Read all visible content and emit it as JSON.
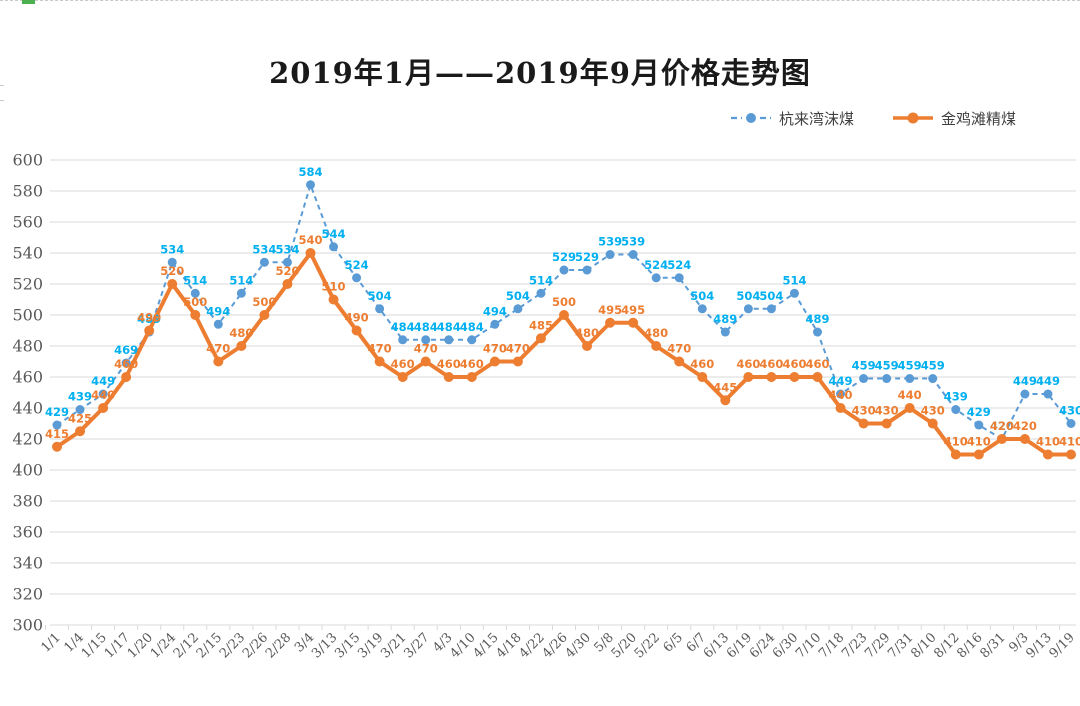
{
  "title": "2019年1月——2019年9月价格走势图",
  "legend": {
    "items": [
      {
        "label": "杭来湾沫煤",
        "marker": "dashed-line-dot-icon"
      },
      {
        "label": "金鸡滩精煤",
        "marker": "solid-line-dot-icon"
      }
    ]
  },
  "colors": {
    "series1_line": "#5B9BD5",
    "series1_label": "#00B0F0",
    "series2_line": "#ED7D31",
    "series2_label": "#ED7D31",
    "grid": "#D9D9D9",
    "axis_text": "#595959",
    "background": "#FFFFFF"
  },
  "chart_data": {
    "type": "line",
    "title": "2019年1月——2019年9月价格走势图",
    "xlabel": "",
    "ylabel": "",
    "ylim": [
      300,
      600
    ],
    "ytick_step": 20,
    "grid": true,
    "legend_position": "top-right",
    "categories": [
      "1/1",
      "1/4",
      "1/15",
      "1/17",
      "1/20",
      "1/24",
      "2/12",
      "2/15",
      "2/23",
      "2/26",
      "2/28",
      "3/4",
      "3/13",
      "3/15",
      "3/19",
      "3/21",
      "3/27",
      "4/3",
      "4/10",
      "4/15",
      "4/18",
      "4/22",
      "4/26",
      "4/30",
      "5/8",
      "5/20",
      "5/22",
      "6/5",
      "6/7",
      "6/13",
      "6/19",
      "6/24",
      "6/30",
      "7/10",
      "7/18",
      "7/23",
      "7/29",
      "7/31",
      "8/10",
      "8/12",
      "8/16",
      "8/31",
      "9/3",
      "9/13",
      "9/19"
    ],
    "series": [
      {
        "name": "杭来湾沫煤",
        "line_style": "dashed",
        "color": "#5B9BD5",
        "label_color": "#00B0F0",
        "values": [
          429,
          439,
          449,
          469,
          489,
          534,
          514,
          494,
          514,
          534,
          534,
          584,
          544,
          524,
          504,
          484,
          484,
          484,
          484,
          494,
          504,
          514,
          529,
          529,
          539,
          539,
          524,
          524,
          504,
          489,
          504,
          504,
          514,
          489,
          449,
          459,
          459,
          459,
          459,
          439,
          429,
          420,
          449,
          449,
          430
        ]
      },
      {
        "name": "金鸡滩精煤",
        "line_style": "solid",
        "color": "#ED7D31",
        "label_color": "#ED7D31",
        "values": [
          415,
          425,
          440,
          460,
          490,
          520,
          500,
          470,
          480,
          500,
          520,
          540,
          510,
          490,
          470,
          460,
          470,
          460,
          460,
          470,
          470,
          485,
          500,
          480,
          495,
          495,
          480,
          470,
          460,
          445,
          460,
          460,
          460,
          460,
          440,
          430,
          430,
          440,
          430,
          410,
          410,
          420,
          420,
          410,
          410
        ]
      }
    ]
  }
}
